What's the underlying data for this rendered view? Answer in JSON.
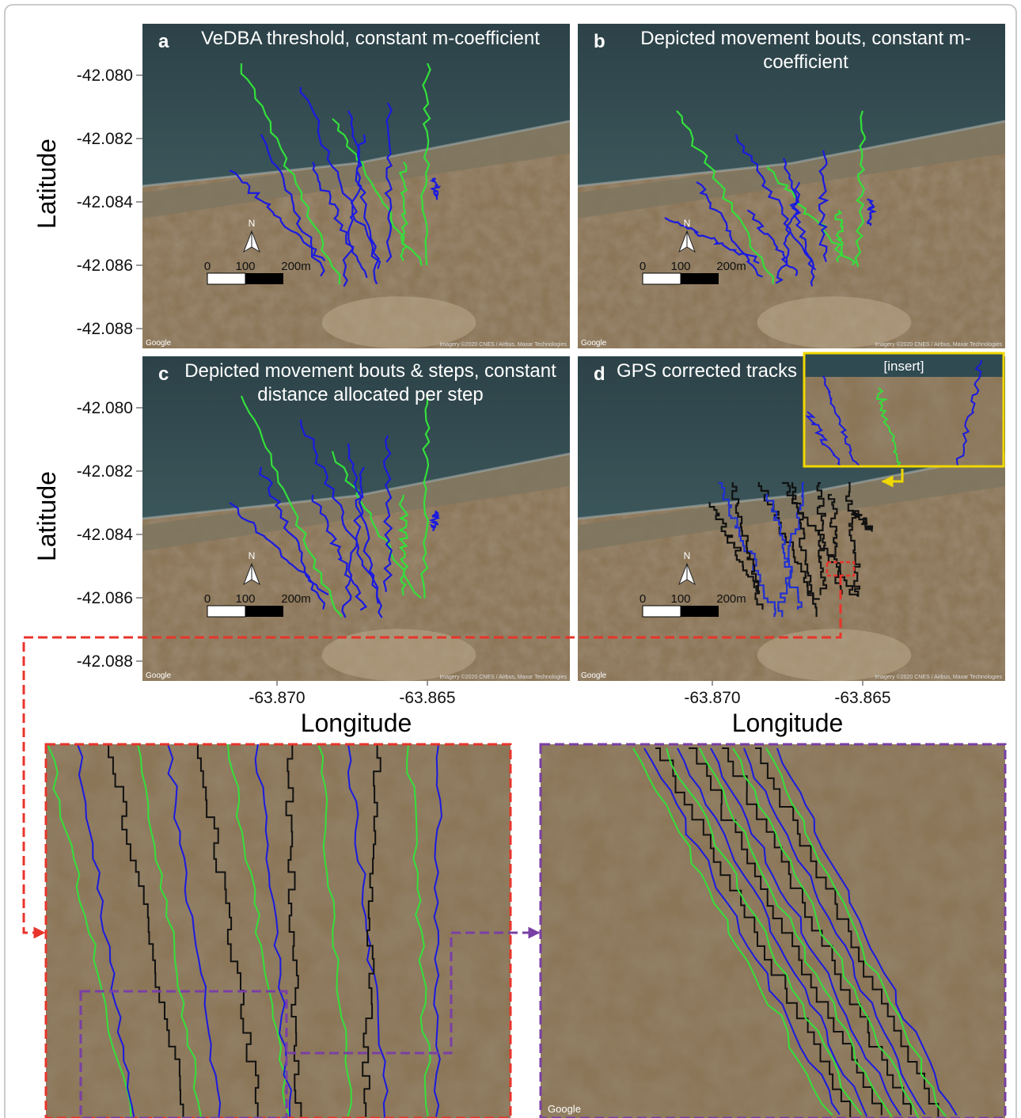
{
  "panels": [
    {
      "letter": "a",
      "title": "VeDBA threshold, constant m-coefficient"
    },
    {
      "letter": "b",
      "title": "Depicted movement bouts, constant m-coefficient"
    },
    {
      "letter": "c",
      "title": "Depicted movement bouts & steps, constant distance allocated per step"
    },
    {
      "letter": "d",
      "title": "GPS corrected tracks",
      "insert_label": "[insert]"
    }
  ],
  "y_axis": {
    "label": "Latitude",
    "ticks": [
      "-42.080",
      "-42.082",
      "-42.084",
      "-42.086",
      "-42.088"
    ]
  },
  "x_axis": {
    "label": "Longitude",
    "ticks": [
      "-63.870",
      "-63.865"
    ]
  },
  "scale_bar": {
    "labels": [
      "0",
      "100",
      "200m"
    ]
  },
  "compass": "N",
  "map_credit": "Google",
  "imagery_credit": "Imagery ©2020 CNES / Airbus, Maxar Technologies"
}
